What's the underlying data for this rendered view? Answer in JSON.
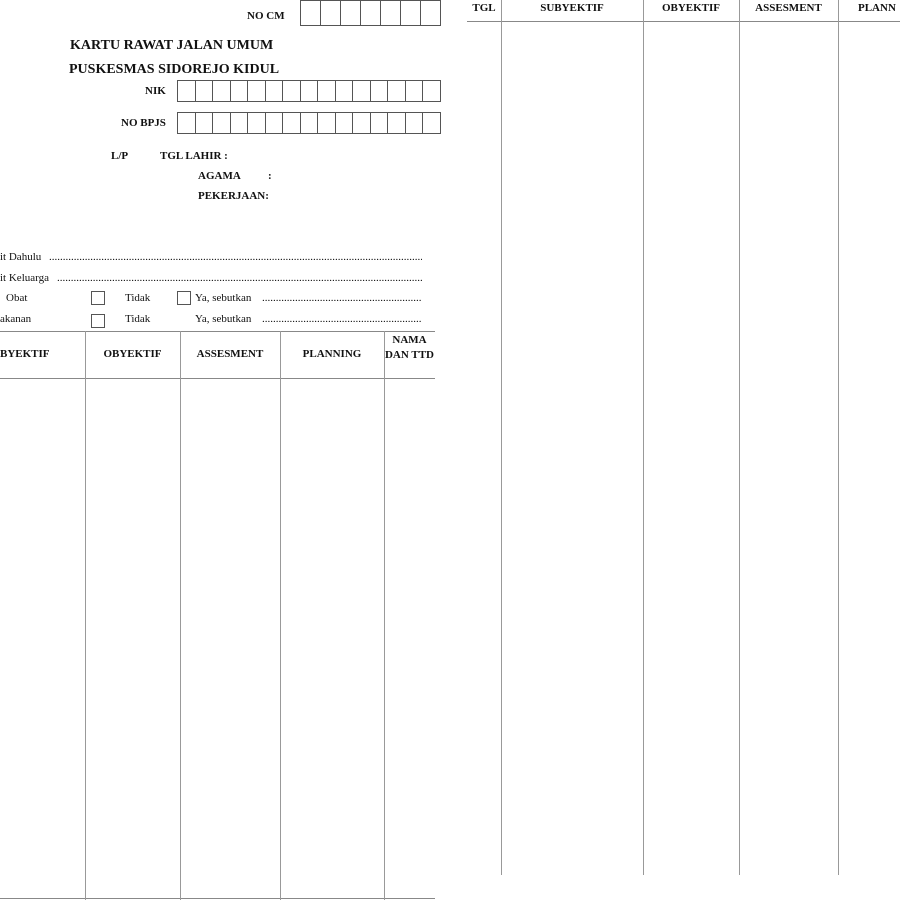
{
  "header": {
    "no_cm_label": "NO CM",
    "title": "KARTU RAWAT JALAN UMUM",
    "subtitle": "PUSKESMAS SIDOREJO KIDUL",
    "nik_label": "NIK",
    "bpjs_label": "NO BPJS",
    "lp_label": "L/P",
    "tgl_lahir_label": "TGL LAHIR :",
    "agama_label": "AGAMA",
    "agama_colon": ":",
    "pekerjaan_label": "PEKERJAAN:"
  },
  "history": {
    "dahulu": "it Dahulu",
    "keluarga": "it Keluarga",
    "obat": "Obat",
    "makanan": "akanan",
    "tidak": "Tidak",
    "ya": "Ya, sebutkan"
  },
  "left_table": {
    "headers": [
      "BYEKTIF",
      "OBYEKTIF",
      "ASSESMENT",
      "PLANNING",
      "NAMA DAN TTD"
    ]
  },
  "right_table": {
    "headers": [
      "TGL",
      "SUBYEKTIF",
      "OBYEKTIF",
      "ASSESMENT",
      "PLANN"
    ]
  }
}
